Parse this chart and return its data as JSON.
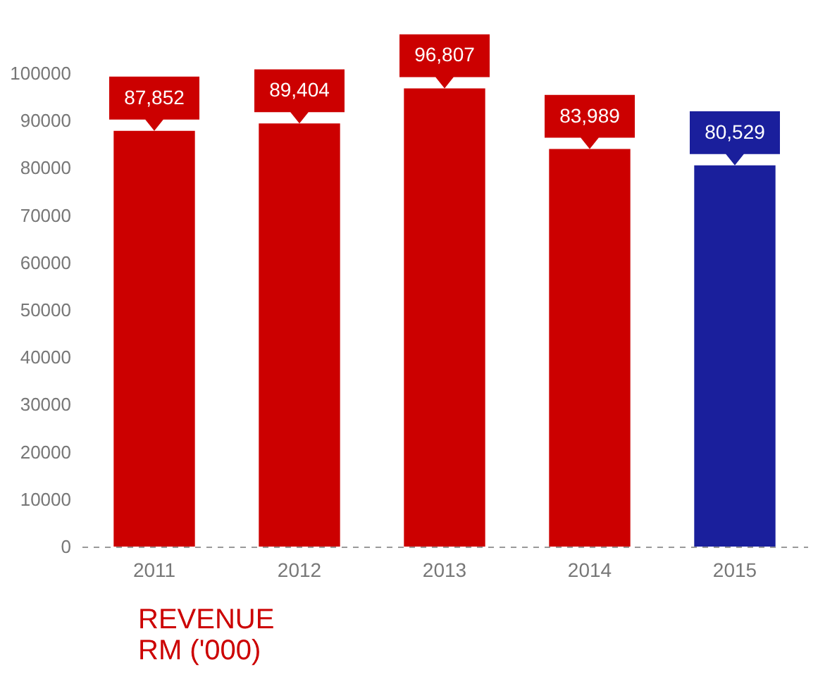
{
  "chart_data": {
    "type": "bar",
    "title": "REVENUE\nRM ('000)",
    "categories": [
      "2011",
      "2012",
      "2013",
      "2014",
      "2015"
    ],
    "values": [
      87852,
      89404,
      96807,
      83989,
      80529
    ],
    "colors": [
      "#cc0000",
      "#cc0000",
      "#cc0000",
      "#cc0000",
      "#1a1f9c"
    ],
    "value_labels": [
      "87,852",
      "89,404",
      "96,807",
      "83,989",
      "80,529"
    ],
    "ylim": [
      0,
      100000
    ],
    "yticks": [
      0,
      10000,
      20000,
      30000,
      40000,
      50000,
      60000,
      70000,
      80000,
      90000,
      100000
    ],
    "grid": false
  }
}
